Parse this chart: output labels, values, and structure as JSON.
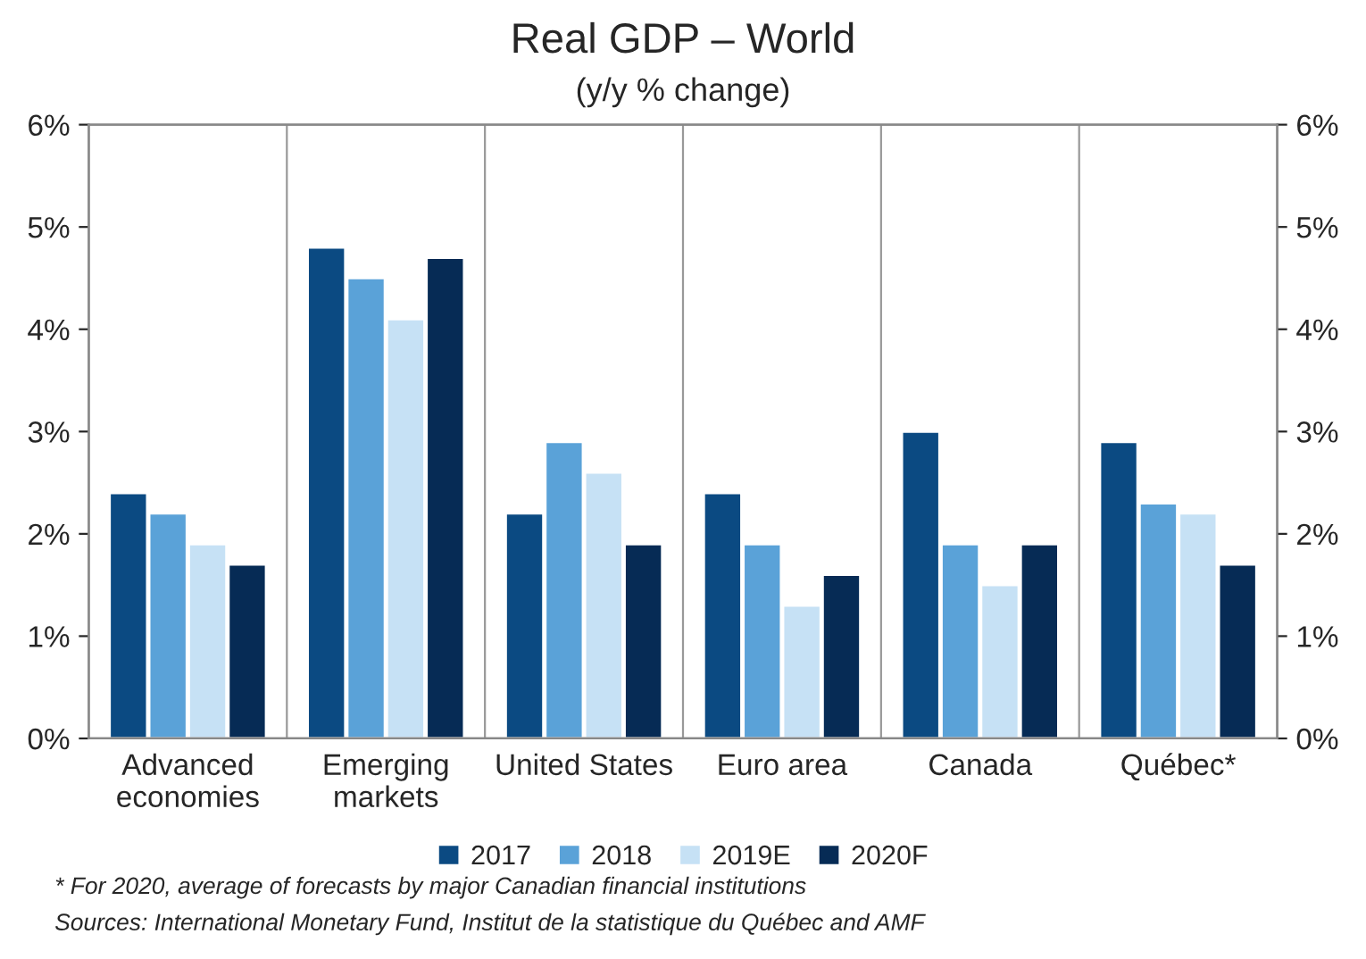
{
  "chart_data": {
    "type": "bar",
    "title": "Real GDP – World",
    "subtitle": "(y/y % change)",
    "categories": [
      "Advanced\neconomies",
      "Emerging\nmarkets",
      "United States",
      "Euro area",
      "Canada",
      "Québec*"
    ],
    "series": [
      {
        "name": "2017",
        "color": "#0b4a82",
        "values": [
          2.4,
          4.8,
          2.2,
          2.4,
          3.0,
          2.9
        ]
      },
      {
        "name": "2018",
        "color": "#5aa2d8",
        "values": [
          2.2,
          4.5,
          2.9,
          1.9,
          1.9,
          2.3
        ]
      },
      {
        "name": "2019E",
        "color": "#c6e1f5",
        "values": [
          1.9,
          4.1,
          2.6,
          1.3,
          1.5,
          2.2
        ]
      },
      {
        "name": "2020F",
        "color": "#062b55",
        "values": [
          1.7,
          4.7,
          1.9,
          1.6,
          1.9,
          1.7
        ]
      }
    ],
    "ylim": [
      0,
      6
    ],
    "yticks": [
      {
        "value": 0,
        "label": "0%"
      },
      {
        "value": 1,
        "label": "1%"
      },
      {
        "value": 2,
        "label": "2%"
      },
      {
        "value": 3,
        "label": "3%"
      },
      {
        "value": 4,
        "label": "4%"
      },
      {
        "value": 5,
        "label": "5%"
      },
      {
        "value": 6,
        "label": "6%"
      }
    ],
    "y2lim": [
      0,
      6
    ],
    "y2ticks": [
      {
        "value": 0,
        "label": "0%"
      },
      {
        "value": 1,
        "label": "1%"
      },
      {
        "value": 2,
        "label": "2%"
      },
      {
        "value": 3,
        "label": "3%"
      },
      {
        "value": 4,
        "label": "4%"
      },
      {
        "value": 5,
        "label": "5%"
      },
      {
        "value": 6,
        "label": "6%"
      }
    ],
    "grid": "x",
    "legend": "bottom",
    "annotations": [
      "* For 2020, average of forecasts by major Canadian financial institutions",
      "Sources: International Monetary Fund, Institut de la statistique du Québec and AMF"
    ]
  }
}
